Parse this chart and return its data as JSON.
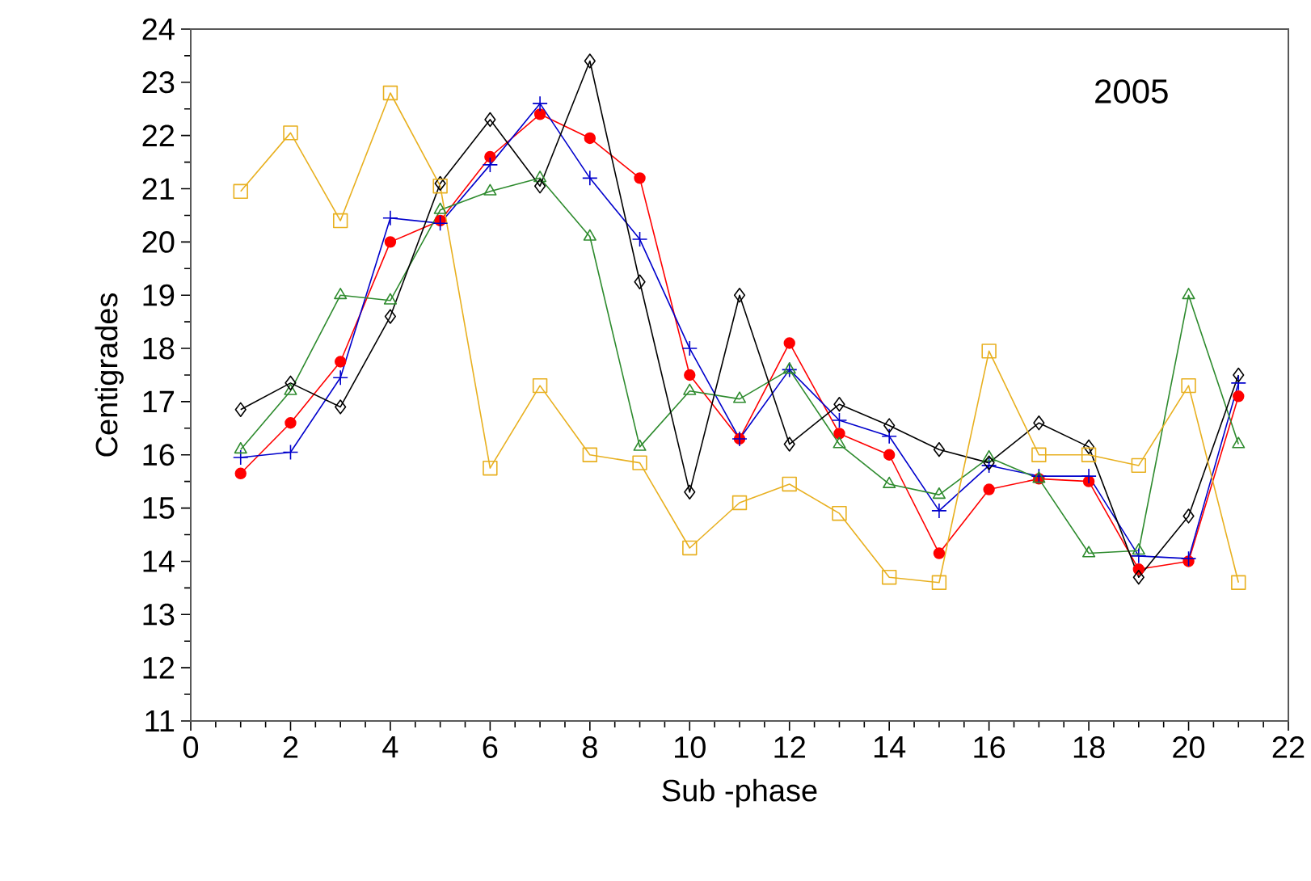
{
  "chart_data": {
    "type": "line",
    "xlabel": "Sub -phase",
    "ylabel": "Centigrades",
    "annotations": [
      "2005"
    ],
    "x": [
      1,
      2,
      3,
      4,
      5,
      6,
      7,
      8,
      9,
      10,
      11,
      12,
      13,
      14,
      15,
      16,
      17,
      18,
      19,
      20,
      21
    ],
    "xlim": [
      0,
      22
    ],
    "ylim": [
      11,
      24
    ],
    "xticks": [
      0,
      2,
      4,
      6,
      8,
      10,
      12,
      14,
      16,
      18,
      20,
      22
    ],
    "yticks": [
      11,
      12,
      13,
      14,
      15,
      16,
      17,
      18,
      19,
      20,
      21,
      22,
      23,
      24
    ],
    "line_style": "solid",
    "series": [
      {
        "color": "#ff0000",
        "marker": "circle",
        "values": [
          15.65,
          16.6,
          17.75,
          20.0,
          20.4,
          21.6,
          22.4,
          21.95,
          21.2,
          17.5,
          16.3,
          18.1,
          16.4,
          16.0,
          14.15,
          15.35,
          15.55,
          15.5,
          13.85,
          14.0,
          17.1
        ]
      },
      {
        "color": "#0000cc",
        "marker": "cross",
        "values": [
          15.95,
          16.05,
          17.45,
          20.45,
          20.35,
          21.45,
          22.6,
          21.2,
          20.05,
          18.0,
          16.3,
          17.6,
          16.65,
          16.35,
          14.95,
          15.8,
          15.6,
          15.6,
          14.1,
          14.05,
          17.35
        ]
      },
      {
        "color": "#2e8b2e",
        "marker": "triangle",
        "values": [
          16.1,
          17.2,
          19.0,
          18.9,
          20.6,
          20.95,
          21.2,
          20.1,
          16.15,
          17.2,
          17.05,
          17.6,
          16.2,
          15.45,
          15.25,
          15.95,
          15.55,
          14.15,
          14.2,
          19.0,
          16.2
        ]
      },
      {
        "color": "#000000",
        "marker": "diamond",
        "values": [
          16.85,
          17.35,
          16.9,
          18.6,
          21.1,
          22.3,
          21.05,
          23.4,
          19.25,
          15.3,
          19.0,
          16.2,
          16.95,
          16.55,
          16.1,
          15.85,
          16.6,
          16.15,
          13.7,
          14.85,
          17.5
        ]
      },
      {
        "color": "#e8b020",
        "marker": "square",
        "values": [
          20.95,
          22.05,
          20.4,
          22.8,
          21.05,
          15.75,
          17.3,
          16.0,
          15.85,
          14.25,
          15.1,
          15.45,
          14.9,
          13.7,
          13.6,
          17.95,
          16.0,
          16.0,
          15.8,
          17.3,
          13.6
        ]
      }
    ]
  }
}
